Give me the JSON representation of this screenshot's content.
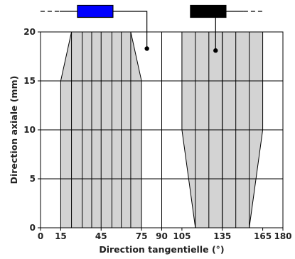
{
  "chart_data": {
    "type": "area",
    "xlabel": "Direction tangentielle (°)",
    "ylabel": "Direction axiale (mm)",
    "xlim": [
      0,
      180
    ],
    "ylim": [
      0,
      20
    ],
    "x_ticks": [
      {
        "value": 0,
        "label": "0"
      },
      {
        "value": 15,
        "label": "15"
      },
      {
        "value": 45,
        "label": "45"
      },
      {
        "value": 75,
        "label": "75"
      },
      {
        "value": 90,
        "label": "90"
      },
      {
        "value": 105,
        "label": "105"
      },
      {
        "value": 135,
        "label": "135"
      },
      {
        "value": 165,
        "label": "165"
      },
      {
        "value": 180,
        "label": "180"
      }
    ],
    "y_ticks": [
      0,
      5,
      10,
      15,
      20
    ],
    "x_gridlines": [
      90,
      135,
      180
    ],
    "y_gridlines": [
      0,
      5,
      10,
      15,
      20
    ],
    "regions": [
      {
        "color": "#d3d3d3",
        "polygon": [
          [
            15,
            0
          ],
          [
            75,
            0
          ],
          [
            75,
            15
          ],
          [
            67,
            20
          ],
          [
            23,
            20
          ],
          [
            15,
            15
          ]
        ],
        "stripes_x": [
          23,
          31,
          38,
          45,
          53,
          60,
          67
        ]
      },
      {
        "color": "#d3d3d3",
        "polygon": [
          [
            115,
            0
          ],
          [
            155,
            0
          ],
          [
            165,
            10
          ],
          [
            165,
            20
          ],
          [
            105,
            20
          ],
          [
            105,
            10
          ]
        ],
        "stripes_x": [
          115,
          125,
          135,
          145,
          155
        ]
      }
    ],
    "markers": [
      {
        "x": 79,
        "y": 18.3,
        "connector_color": "#0000ff",
        "connector_side": "left"
      },
      {
        "x": 130,
        "y": 18.1,
        "connector_color": "#000000",
        "connector_side": "right"
      }
    ],
    "grid": true,
    "legend": "none"
  }
}
